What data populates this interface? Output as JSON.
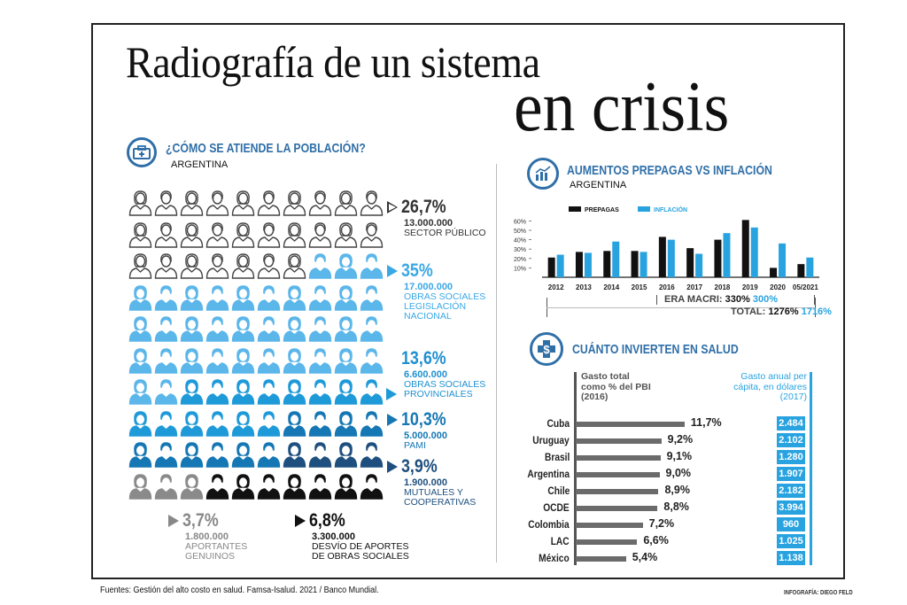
{
  "title": {
    "line1": "Radiografía de un sistema",
    "line2": "en crisis"
  },
  "population": {
    "heading": "¿CÓMO SE ATIENDE LA POBLACIÓN?",
    "subheading": "ARGENTINA",
    "icon": "medical-kit-icon",
    "grid_counts": [
      {
        "group": "sector_publico",
        "count": 27,
        "color": "#ffffff",
        "outline": true
      },
      {
        "group": "obras_sociales_nacional",
        "count": 35,
        "color": "#5bb6ea"
      },
      {
        "group": "obras_sociales_provinciales",
        "count": 14,
        "color": "#1f9ad9"
      },
      {
        "group": "pami",
        "count": 10,
        "color": "#1577b4"
      },
      {
        "group": "mutuales",
        "count": 4,
        "color": "#1e4f7e"
      },
      {
        "group": "aportantes",
        "count": 3,
        "color": "#8a8a8a"
      },
      {
        "group": "desvio",
        "count": 7,
        "color": "#111111"
      }
    ],
    "stats": [
      {
        "pct": "26,7%",
        "num": "13.000.000",
        "label": [
          "SECTOR PÚBLICO"
        ],
        "color": "#333333",
        "label_color": "#333333",
        "tri": "outline"
      },
      {
        "pct": "35%",
        "num": "17.000.000",
        "label": [
          "OBRAS SOCIALES",
          "LEGISLACIÓN",
          "NACIONAL"
        ],
        "color": "#3aa8e6",
        "label_color": "#3aa8e6",
        "tri": "#3aa8e6"
      },
      {
        "pct": "13,6%",
        "num": "6.600.000",
        "label": [
          "OBRAS SOCIALES",
          "PROVINCIALES"
        ],
        "color": "#1f90d1",
        "label_color": "#1f90d1",
        "tri": "#1f9ad9"
      },
      {
        "pct": "10,3%",
        "num": "5.000.000",
        "label": [
          "PAMI"
        ],
        "color": "#1577b4",
        "label_color": "#1577b4",
        "tri": "#1577b4"
      },
      {
        "pct": "3,9%",
        "num": "1.900.000",
        "label": [
          "MUTUALES Y",
          "COOPERATIVAS"
        ],
        "color": "#1e4f7e",
        "label_color": "#1e4f7e",
        "tri": "#1e4f7e"
      },
      {
        "pct": "3,7%",
        "num": "1.800.000",
        "label": [
          "APORTANTES",
          "GENUINOS"
        ],
        "color": "#888888",
        "label_color": "#888888",
        "tri": "#888888"
      },
      {
        "pct": "6,8%",
        "num": "3.300.000",
        "label": [
          "DESVÍO DE APORTES",
          "DE OBRAS SOCIALES"
        ],
        "color": "#111111",
        "label_color": "#111111",
        "tri": "#111111"
      }
    ]
  },
  "prepagas": {
    "heading": "AUMENTOS PREPAGAS VS INFLACIÓN",
    "subheading": "ARGENTINA",
    "icon": "growth-chart-icon",
    "era_label": "ERA MACRI:",
    "era_prepagas": "330%",
    "era_inflacion": "300%",
    "total_label": "TOTAL:",
    "total_prepagas": "1276%",
    "total_inflacion": "1716%"
  },
  "chart_data": [
    {
      "type": "bar",
      "title": "AUMENTOS PREPAGAS VS INFLACIÓN",
      "categories": [
        "2012",
        "2013",
        "2014",
        "2015",
        "2016",
        "2017",
        "2018",
        "2019",
        "2020",
        "05/2021"
      ],
      "series": [
        {
          "name": "PREPAGAS",
          "color": "#111111",
          "values": [
            21,
            27,
            28,
            28,
            43,
            31,
            40,
            61,
            10,
            14
          ]
        },
        {
          "name": "INFLACIÓN",
          "color": "#29a3e0",
          "values": [
            24,
            26,
            38,
            27,
            40,
            25,
            47,
            53,
            36,
            21
          ]
        }
      ],
      "yticks": [
        "10%",
        "20%",
        "30%",
        "40%",
        "50%",
        "60%"
      ],
      "ylim": [
        0,
        65
      ],
      "legend": "top"
    },
    {
      "type": "bar",
      "orientation": "horizontal",
      "title": "CUÁNTO INVIERTEN EN SALUD",
      "xlabel": "Gasto total como % del PBI (2016)",
      "categories": [
        "Cuba",
        "Uruguay",
        "Brasil",
        "Argentina",
        "Chile",
        "OCDE",
        "Colombia",
        "LAC",
        "México"
      ],
      "values": [
        11.7,
        9.2,
        9.1,
        9.0,
        8.9,
        8.8,
        7.2,
        6.6,
        5.4
      ],
      "value_labels": [
        "11,7%",
        "9,2%",
        "9,1%",
        "9,0%",
        "8,9%",
        "8,8%",
        "7,2%",
        "6,6%",
        "5,4%"
      ],
      "secondary_label": "Gasto anual per cápita, en dólares (2017)",
      "secondary_values": [
        "2.484",
        "2.102",
        "1.280",
        "1.907",
        "2.182",
        "3.994",
        "960",
        "1.025",
        "1.138"
      ]
    }
  ],
  "inversion": {
    "heading": "CUÁNTO INVIERTEN EN SALUD",
    "icon": "dollar-cross-icon",
    "col1": [
      "Gasto total",
      "como % del PBI",
      "(2016)"
    ],
    "col2": [
      "Gasto anual per",
      "cápita, en dólares",
      "(2017)"
    ]
  },
  "footer": {
    "sources": "Fuentes: Gestión del alto costo en salud. Famsa-Isalud. 2021 / Banco Mundial.",
    "credit": "INFOGRAFÍA: DIEGO FELD"
  },
  "colors": {
    "accent": "#2f6fa8",
    "light_blue": "#29a3e0"
  }
}
